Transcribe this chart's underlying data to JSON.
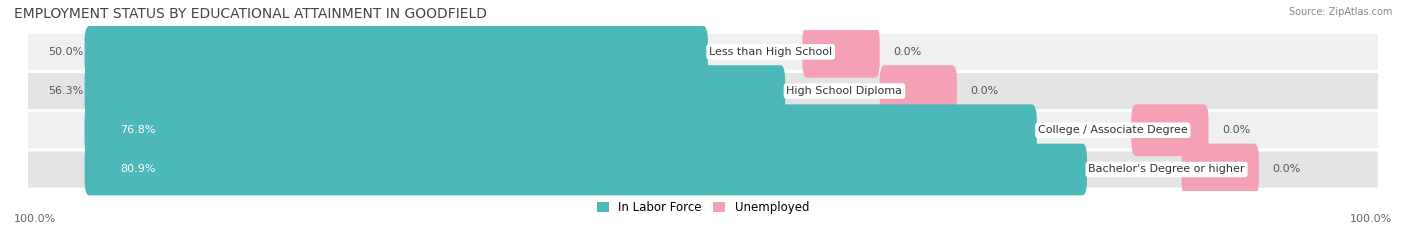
{
  "title": "EMPLOYMENT STATUS BY EDUCATIONAL ATTAINMENT IN GOODFIELD",
  "source": "Source: ZipAtlas.com",
  "categories": [
    "Less than High School",
    "High School Diploma",
    "College / Associate Degree",
    "Bachelor's Degree or higher"
  ],
  "labor_force": [
    50.0,
    56.3,
    76.8,
    80.9
  ],
  "unemployed": [
    0.0,
    0.0,
    0.0,
    0.0
  ],
  "max_value": 100.0,
  "labor_force_color": "#4db8b8",
  "unemployed_color": "#f4a0b5",
  "row_bg_colors": [
    "#f0f0f0",
    "#e4e4e4"
  ],
  "title_color": "#444444",
  "left_axis_label": "100.0%",
  "right_axis_label": "100.0%",
  "legend_labor_force": "In Labor Force",
  "legend_unemployed": "Unemployed",
  "title_fontsize": 10,
  "bar_label_fontsize": 8,
  "cat_label_fontsize": 8,
  "axis_label_fontsize": 8,
  "source_fontsize": 7
}
